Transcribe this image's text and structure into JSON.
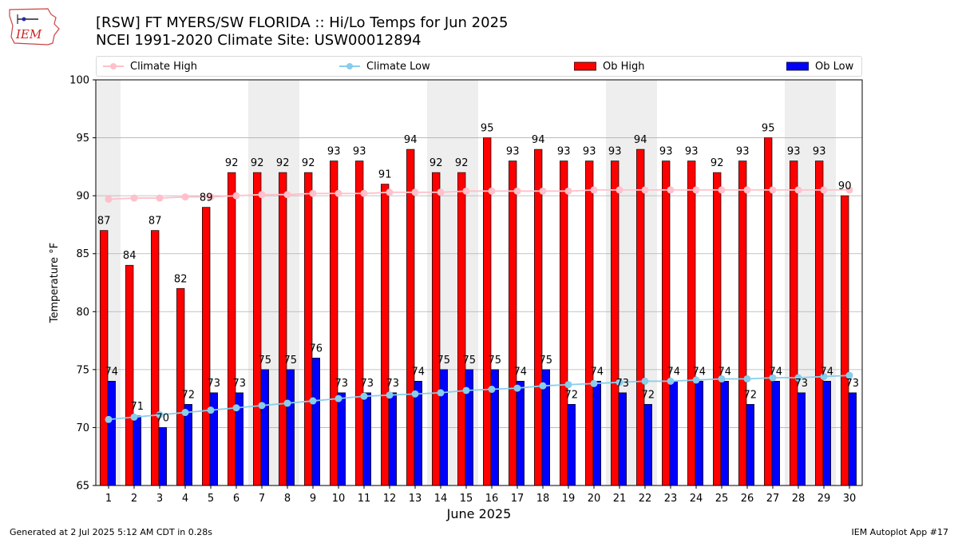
{
  "header": {
    "title_line1": "[RSW] FT MYERS/SW FLORIDA :: Hi/Lo Temps for Jun 2025",
    "title_line2": "NCEI 1991-2020 Climate Site: USW00012894",
    "logo_text": "IEM"
  },
  "footer": {
    "generated": "Generated at 2 Jul 2025 5:12 AM CDT in 0.28s",
    "app": "IEM Autoplot App #17"
  },
  "colors": {
    "ob_high": "#ff0000",
    "ob_low": "#0000ff",
    "climate_high": "#ffc0cb",
    "climate_low": "#87ceeb",
    "weekend_shade": "#eeeeee",
    "grid": "#b0b0b0"
  },
  "chart_data": {
    "type": "bar",
    "xlabel": "June 2025",
    "ylabel": "Temperature °F",
    "ylim": [
      65,
      100
    ],
    "yticks": [
      65,
      70,
      75,
      80,
      85,
      90,
      95,
      100
    ],
    "grid": true,
    "legend_placement": "top",
    "categories": [
      "1",
      "2",
      "3",
      "4",
      "5",
      "6",
      "7",
      "8",
      "9",
      "10",
      "11",
      "12",
      "13",
      "14",
      "15",
      "16",
      "17",
      "18",
      "19",
      "20",
      "21",
      "22",
      "23",
      "24",
      "25",
      "26",
      "27",
      "28",
      "29",
      "30"
    ],
    "shaded_weekends": [
      [
        1,
        1
      ],
      [
        7,
        8
      ],
      [
        14,
        15
      ],
      [
        21,
        22
      ],
      [
        28,
        29
      ]
    ],
    "series": [
      {
        "name": "Climate High",
        "kind": "line",
        "values": [
          89.7,
          89.8,
          89.8,
          89.9,
          89.9,
          90.0,
          90.1,
          90.1,
          90.2,
          90.2,
          90.2,
          90.3,
          90.3,
          90.3,
          90.4,
          90.4,
          90.4,
          90.4,
          90.4,
          90.5,
          90.5,
          90.5,
          90.5,
          90.5,
          90.5,
          90.5,
          90.5,
          90.5,
          90.5,
          90.5
        ]
      },
      {
        "name": "Climate Low",
        "kind": "line",
        "values": [
          70.7,
          70.9,
          71.1,
          71.3,
          71.5,
          71.7,
          71.9,
          72.1,
          72.3,
          72.5,
          72.7,
          72.8,
          72.9,
          73.0,
          73.2,
          73.3,
          73.4,
          73.6,
          73.7,
          73.8,
          73.9,
          74.0,
          74.0,
          74.1,
          74.2,
          74.2,
          74.3,
          74.3,
          74.4,
          74.5
        ]
      },
      {
        "name": "Ob High",
        "kind": "bar",
        "values": [
          87,
          84,
          87,
          82,
          89,
          92,
          92,
          92,
          92,
          93,
          93,
          91,
          94,
          92,
          92,
          95,
          93,
          94,
          93,
          93,
          93,
          94,
          93,
          93,
          92,
          93,
          95,
          93,
          93,
          90
        ]
      },
      {
        "name": "Ob Low",
        "kind": "bar",
        "values": [
          74,
          71,
          70,
          72,
          73,
          73,
          75,
          75,
          76,
          73,
          73,
          73,
          74,
          75,
          75,
          75,
          74,
          75,
          72,
          74,
          73,
          72,
          74,
          74,
          74,
          72,
          74,
          73,
          74,
          73
        ]
      }
    ]
  }
}
